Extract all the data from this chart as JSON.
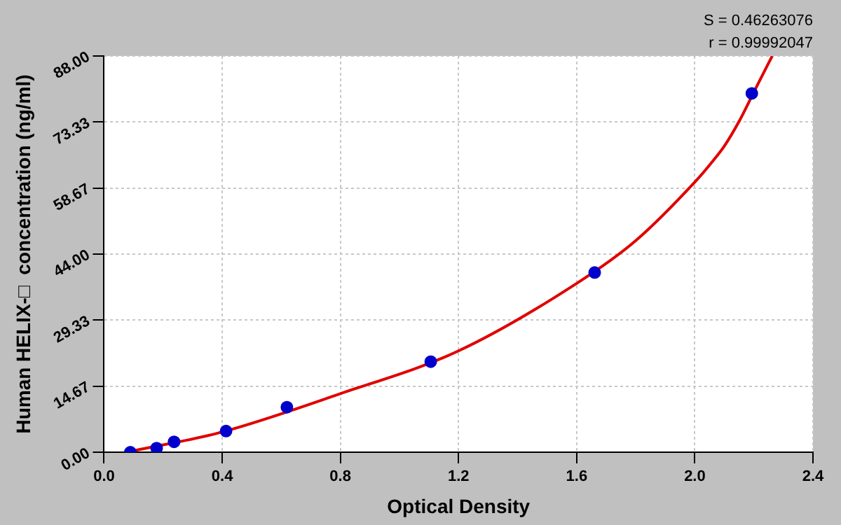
{
  "chart_data": {
    "type": "scatter",
    "xlabel": "Optical Density",
    "ylabel": "Human HELIX-□  concentration (ng/ml)",
    "xlim": [
      0,
      2.4
    ],
    "xticks": [
      {
        "value": 0,
        "label": "0.0"
      },
      {
        "value": 0.4,
        "label": "0.4"
      },
      {
        "value": 0.8,
        "label": "0.8"
      },
      {
        "value": 1.2,
        "label": "1.2"
      },
      {
        "value": 1.6,
        "label": "1.6"
      },
      {
        "value": 2.0,
        "label": "2.0"
      },
      {
        "value": 2.4,
        "label": "2.4"
      }
    ],
    "ylim": [
      0,
      88
    ],
    "yticks": [
      {
        "value": 0,
        "label": "0.00"
      },
      {
        "value": 14.67,
        "label": "14.67"
      },
      {
        "value": 29.33,
        "label": "29.33"
      },
      {
        "value": 44,
        "label": "44.00"
      },
      {
        "value": 58.67,
        "label": "58.67"
      },
      {
        "value": 73.33,
        "label": "73.33"
      },
      {
        "value": 88,
        "label": "88.00"
      }
    ],
    "grid": true,
    "legend": false,
    "marker": "circle",
    "annotations": [
      "S = 0.46263076",
      "r = 0.99992047"
    ],
    "series": [
      {
        "color": "#0000cc",
        "x": [
          0.089,
          0.178,
          0.237,
          0.413,
          0.619,
          1.106,
          1.661,
          2.193
        ],
        "values": [
          0,
          0.9,
          2.3,
          4.7,
          10.0,
          20.1,
          39.9,
          79.7
        ]
      },
      {
        "type": "line",
        "color": "#e00000",
        "marker": "none",
        "x": [
          0.1,
          0.4,
          0.8,
          1.2,
          1.6,
          1.8,
          2.0,
          2.05,
          2.1,
          2.15,
          2.2,
          2.262
        ],
        "values": [
          0.3,
          4.5,
          13,
          22.5,
          37.5,
          47,
          60,
          63.8,
          68,
          73.5,
          80,
          88
        ]
      }
    ]
  }
}
